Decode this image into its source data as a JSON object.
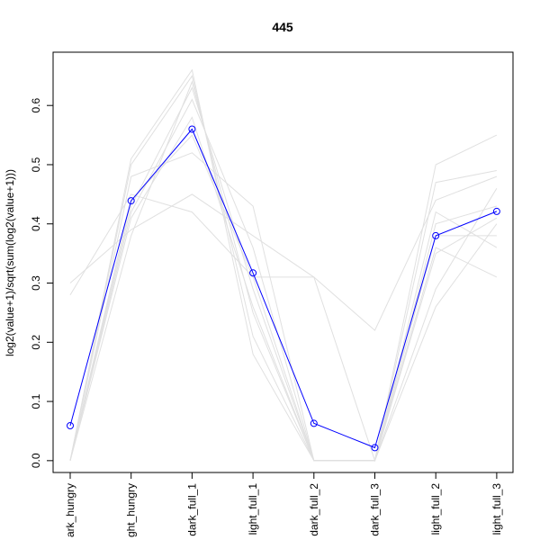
{
  "chart_data": {
    "type": "line",
    "title": "445",
    "xlabel": "",
    "ylabel": "log2(value+1)/sqrt(sum(log2(value+1)))",
    "categories": [
      "dark_hungry",
      "light_hungry",
      "dark_full_1",
      "light_full_1",
      "dark_full_2",
      "dark_full_3",
      "light_full_2",
      "light_full_3"
    ],
    "category_labels_visible": [
      "ark_hungry",
      "ght_hungry",
      "dark_full_1",
      "light_full_1",
      "dark_full_2",
      "dark_full_3",
      "light_full_2",
      "light_full_3"
    ],
    "ylim": [
      -0.02,
      0.69
    ],
    "yticks": [
      0.0,
      0.1,
      0.2,
      0.3,
      0.4,
      0.5,
      0.6
    ],
    "ytick_labels": [
      "0.0",
      "0.1",
      "0.2",
      "0.3",
      "0.4",
      "0.5",
      "0.6"
    ],
    "highlight": {
      "color": "#0000ff",
      "marker": "open-circle",
      "values": [
        0.059,
        0.439,
        0.56,
        0.317,
        0.063,
        0.022,
        0.38,
        0.421
      ]
    },
    "background_series": {
      "color": "#e0e0e0",
      "series": [
        [
          0.0,
          0.51,
          0.66,
          0.18,
          0.0,
          0.0,
          0.47,
          0.49
        ],
        [
          0.3,
          0.39,
          0.45,
          0.38,
          0.31,
          0.22,
          0.44,
          0.48
        ],
        [
          0.0,
          0.43,
          0.63,
          0.29,
          0.0,
          0.0,
          0.38,
          0.38
        ],
        [
          0.28,
          0.45,
          0.42,
          0.31,
          0.31,
          0.0,
          0.36,
          0.31
        ],
        [
          0.0,
          0.48,
          0.52,
          0.43,
          0.0,
          0.0,
          0.5,
          0.55
        ],
        [
          0.0,
          0.44,
          0.55,
          0.31,
          0.0,
          0.0,
          0.42,
          0.36
        ],
        [
          0.0,
          0.5,
          0.65,
          0.21,
          0.0,
          0.0,
          0.29,
          0.46
        ],
        [
          0.0,
          0.38,
          0.64,
          0.25,
          0.0,
          0.0,
          0.26,
          0.4
        ],
        [
          0.0,
          0.42,
          0.61,
          0.36,
          0.0,
          0.0,
          0.4,
          0.43
        ],
        [
          0.0,
          0.41,
          0.58,
          0.26,
          0.0,
          0.0,
          0.35,
          0.41
        ]
      ]
    },
    "grid": false,
    "legend": "none"
  }
}
